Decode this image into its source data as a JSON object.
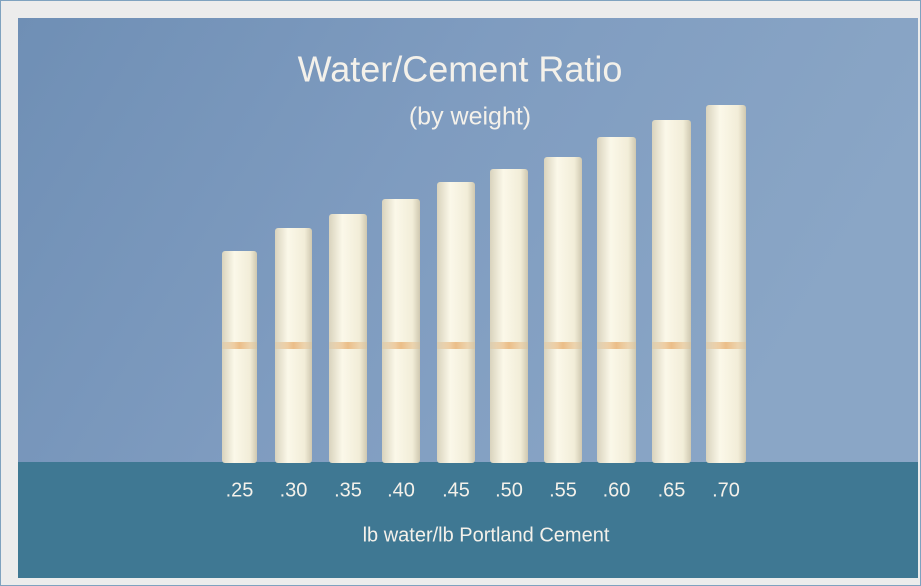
{
  "title": "Water/Cement Ratio",
  "subtitle": "(by weight)",
  "ratios": [
    ".25",
    ".30",
    ".35",
    ".40",
    ".45",
    ".50",
    ".55",
    ".60",
    ".65",
    ".70"
  ],
  "caption": "lb water/lb  Portland Cement"
}
